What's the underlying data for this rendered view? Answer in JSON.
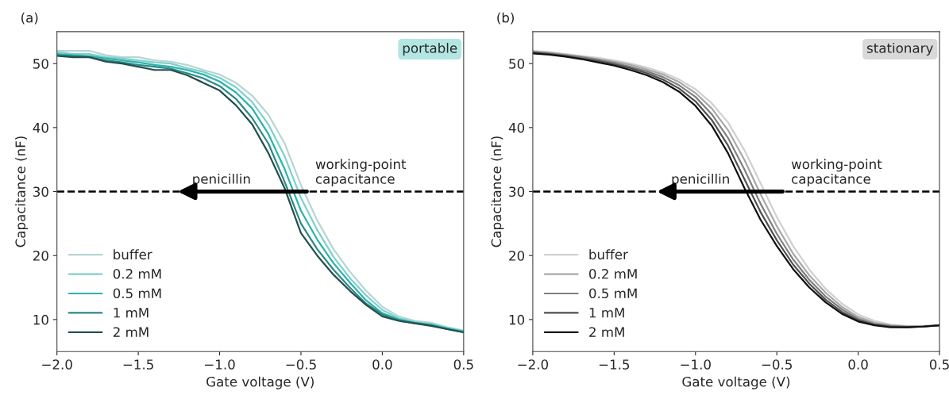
{
  "chart_data": [
    {
      "type": "line",
      "title": "(a)",
      "subtitle": "portable",
      "xlabel": "Gate voltage (V)",
      "ylabel": "Capacitance (nF)",
      "x": [
        -2.0,
        -1.9,
        -1.8,
        -1.7,
        -1.6,
        -1.5,
        -1.4,
        -1.3,
        -1.2,
        -1.1,
        -1.0,
        -0.9,
        -0.8,
        -0.7,
        -0.6,
        -0.5,
        -0.4,
        -0.3,
        -0.2,
        -0.1,
        0.0,
        0.1,
        0.2,
        0.3,
        0.4,
        0.5
      ],
      "series": [
        {
          "name": "buffer",
          "color": "#b8d4d3",
          "values": [
            52,
            52,
            52,
            51.3,
            51,
            51,
            50.5,
            50.3,
            49.8,
            49,
            48.3,
            47,
            45,
            42,
            37.5,
            31,
            25.5,
            21,
            17.5,
            14.5,
            12,
            10.5,
            9.8,
            9.5,
            8.8,
            8.3
          ]
        },
        {
          "name": "0.2 mM",
          "color": "#7fcfcb",
          "values": [
            51.8,
            51.5,
            51.5,
            51,
            50.8,
            50.5,
            50.2,
            50,
            49.3,
            48.7,
            47.8,
            46.3,
            44,
            40.5,
            35.5,
            29,
            24,
            19.8,
            16.5,
            13.8,
            11.5,
            10.2,
            9.6,
            9.3,
            8.7,
            8.2
          ]
        },
        {
          "name": "0.5 mM",
          "color": "#2ab3ad",
          "values": [
            51.5,
            51.3,
            51.2,
            50.8,
            50.5,
            50.2,
            49.8,
            49.5,
            49,
            48.3,
            47.2,
            45.5,
            43,
            39,
            33.5,
            27,
            22.5,
            18.8,
            15.8,
            13,
            11,
            10,
            9.5,
            9.2,
            8.6,
            8.1
          ]
        },
        {
          "name": "1 mM",
          "color": "#2a8a86",
          "values": [
            51.3,
            51.2,
            51,
            50.5,
            50.2,
            49.8,
            49.5,
            49.2,
            48.5,
            47.7,
            46.5,
            44.5,
            41.5,
            37.5,
            31.5,
            25,
            21,
            17.8,
            15,
            12.5,
            10.8,
            9.9,
            9.4,
            9.1,
            8.5,
            8.0
          ]
        },
        {
          "name": "2 mM",
          "color": "#234f4e",
          "values": [
            51.2,
            51,
            51,
            50.3,
            50,
            49.5,
            49,
            49,
            48.2,
            47,
            45.8,
            43.5,
            40.5,
            36,
            30.5,
            23.5,
            20,
            17,
            14.5,
            12.3,
            10.5,
            9.8,
            9.4,
            9,
            8.5,
            8.0
          ]
        }
      ],
      "xlim": [
        -2.0,
        0.5
      ],
      "ylim": [
        5,
        55
      ],
      "xticks": [
        {
          "value": -2.0,
          "label": "−2.0"
        },
        {
          "value": -1.5,
          "label": "−1.5"
        },
        {
          "value": -1.0,
          "label": "−1.0"
        },
        {
          "value": -0.5,
          "label": "−0.5"
        },
        {
          "value": 0.0,
          "label": "0.0"
        },
        {
          "value": 0.5,
          "label": "0.5"
        }
      ],
      "yticks": [
        10,
        20,
        30,
        40,
        50
      ],
      "ref_lines": [
        {
          "axis": "y",
          "value": 30,
          "label": "working-point\ncapacitance",
          "color": "#000000",
          "line_style": "dashed"
        }
      ],
      "annotations": [
        {
          "text": "penicillin",
          "x": -1.27,
          "y": 30
        }
      ],
      "legend": "bottom left",
      "grid": false
    },
    {
      "type": "line",
      "title": "(b)",
      "subtitle": "stationary",
      "xlabel": "Gate voltage (V)",
      "ylabel": "Capacitance (nF)",
      "x": [
        -2.0,
        -1.9,
        -1.8,
        -1.7,
        -1.6,
        -1.5,
        -1.4,
        -1.3,
        -1.2,
        -1.1,
        -1.0,
        -0.9,
        -0.8,
        -0.7,
        -0.6,
        -0.5,
        -0.4,
        -0.3,
        -0.2,
        -0.1,
        0.0,
        0.1,
        0.2,
        0.3,
        0.4,
        0.5
      ],
      "series": [
        {
          "name": "buffer",
          "color": "#d0d0d0",
          "values": [
            52,
            51.8,
            51.5,
            51.2,
            50.9,
            50.5,
            50,
            49.4,
            48.6,
            47.5,
            46,
            43.8,
            40.8,
            36.5,
            31.3,
            26,
            21.5,
            17.8,
            14.8,
            12.5,
            10.8,
            9.8,
            9.2,
            9,
            9,
            null
          ]
        },
        {
          "name": "0.2 mM",
          "color": "#a8a8a8",
          "values": [
            51.9,
            51.7,
            51.4,
            51.1,
            50.7,
            50.3,
            49.8,
            49.1,
            48.3,
            47.1,
            45.4,
            43,
            39.6,
            35,
            29.6,
            24.6,
            20.3,
            16.9,
            14.2,
            12,
            10.4,
            9.5,
            9.1,
            8.9,
            9,
            9.1
          ]
        },
        {
          "name": "0.5 mM",
          "color": "#808080",
          "values": [
            51.8,
            51.6,
            51.3,
            51,
            50.6,
            50.1,
            49.5,
            48.8,
            47.9,
            46.6,
            44.8,
            42.1,
            38.4,
            33.5,
            28.1,
            23.4,
            19.4,
            16.2,
            13.6,
            11.6,
            10.1,
            9.3,
            9,
            8.9,
            8.9,
            9.1
          ]
        },
        {
          "name": "1 mM",
          "color": "#505050",
          "values": [
            51.7,
            51.5,
            51.2,
            50.8,
            50.4,
            49.9,
            49.3,
            48.5,
            47.5,
            46.1,
            44.1,
            41.2,
            37.2,
            32,
            26.8,
            22.4,
            18.6,
            15.6,
            13.1,
            11.2,
            9.9,
            9.2,
            8.9,
            8.8,
            8.9,
            9.1
          ]
        },
        {
          "name": "2 mM",
          "color": "#101010",
          "values": [
            51.6,
            51.4,
            51.1,
            50.7,
            50.2,
            49.7,
            49,
            48.2,
            47.1,
            45.6,
            43.4,
            40.3,
            36,
            30.6,
            25.6,
            21.5,
            17.9,
            15,
            12.7,
            10.9,
            9.7,
            9.1,
            8.8,
            8.8,
            8.9,
            9.1
          ]
        }
      ],
      "xlim": [
        -2.0,
        0.5
      ],
      "ylim": [
        5,
        55
      ],
      "xticks": [
        {
          "value": -2.0,
          "label": "−2.0"
        },
        {
          "value": -1.5,
          "label": "−1.5"
        },
        {
          "value": -1.0,
          "label": "−1.0"
        },
        {
          "value": -0.5,
          "label": "−0.5"
        },
        {
          "value": 0.0,
          "label": "0.0"
        },
        {
          "value": 0.5,
          "label": "0.5"
        }
      ],
      "yticks": [
        10,
        20,
        30,
        40,
        50
      ],
      "ref_lines": [
        {
          "axis": "y",
          "value": 30,
          "label": "working-point\ncapacitance",
          "color": "#000000",
          "line_style": "dashed"
        }
      ],
      "annotations": [
        {
          "text": "penicillin",
          "x": -1.25,
          "y": 30
        }
      ],
      "legend": "bottom left",
      "grid": false
    }
  ]
}
